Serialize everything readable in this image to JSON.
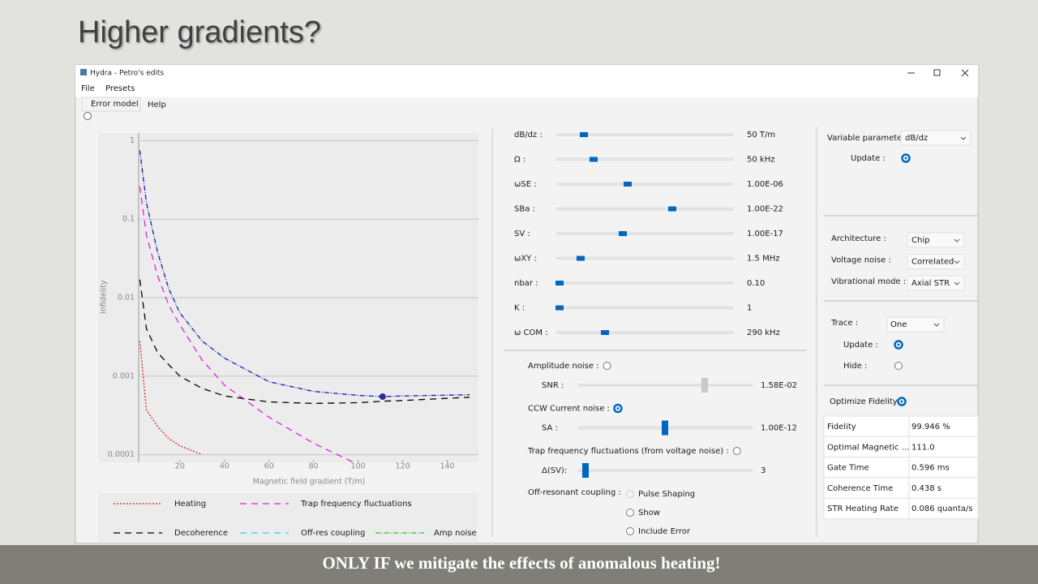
{
  "slide": {
    "title": "Higher gradients?",
    "footer": "ONLY IF we mitigate the effects of anomalous heating!"
  },
  "window": {
    "title": "Hydra - Petro's edits",
    "menu": [
      "File",
      "Presets"
    ],
    "tabs": [
      "Error model",
      "Help"
    ]
  },
  "chart_data": {
    "type": "line",
    "x_label": "Magnetic field gradient (T/m)",
    "y_label": "Infidelity",
    "log_y": true,
    "grid": true,
    "xlim": [
      1.5,
      154
    ],
    "ylim": [
      8e-05,
      1.25
    ],
    "xticks": [
      20,
      40,
      60,
      80,
      100,
      120,
      140
    ],
    "yticks": [
      1,
      0.1,
      0.01,
      0.001,
      0.0001
    ],
    "x": [
      2,
      5,
      10,
      15,
      20,
      30,
      40,
      60,
      80,
      100,
      111,
      120,
      150
    ],
    "series": [
      {
        "name": "Heating",
        "color": "#e02020",
        "style": "dotted",
        "values": [
          0.0028,
          0.00037,
          0.00023,
          0.00016,
          0.00013,
          0.0001,
          null,
          null,
          null,
          null,
          null,
          null,
          null
        ]
      },
      {
        "name": "Trap frequency fluctuations",
        "color": "#e020e0",
        "style": "dashed",
        "values": [
          0.26,
          0.062,
          0.019,
          0.008,
          0.0045,
          0.0016,
          0.00077,
          0.0003,
          0.00014,
          7.5e-05,
          null,
          null,
          null
        ]
      },
      {
        "name": "Decoherence",
        "color": "#000000",
        "style": "dashed",
        "values": [
          0.017,
          0.004,
          0.002,
          0.0014,
          0.001,
          0.0007,
          0.00056,
          0.00047,
          0.00045,
          0.00046,
          0.00048,
          0.00049,
          0.00054
        ]
      },
      {
        "name": "Off-res coupling",
        "color": "#20d8f0",
        "style": "dashed",
        "values": [
          null,
          null,
          null,
          null,
          null,
          null,
          null,
          null,
          null,
          null,
          null,
          null,
          null
        ]
      },
      {
        "name": "Amp noise",
        "color": "#30c020",
        "style": "dashdot",
        "values": [
          null,
          null,
          null,
          null,
          null,
          null,
          null,
          null,
          null,
          null,
          null,
          null,
          null
        ]
      },
      {
        "color": "#1a1ab0",
        "style": "dashdot",
        "values": [
          0.75,
          0.16,
          0.038,
          0.013,
          0.0064,
          0.0028,
          0.0017,
          0.00085,
          0.00064,
          0.00057,
          0.00055,
          0.00056,
          0.00058
        ]
      }
    ],
    "marker": {
      "x": 111,
      "y": 0.00055,
      "color": "#2b2b9e"
    }
  },
  "parameters": [
    {
      "label": "dB/dz :",
      "value": "50 T/m"
    },
    {
      "label": "Ω :",
      "value": "50 kHz"
    },
    {
      "label": "ωSE :",
      "value": "1.00E-06"
    },
    {
      "label": "SBa :",
      "value": "1.00E-22"
    },
    {
      "label": "SV :",
      "value": "1.00E-17"
    },
    {
      "label": "ωXY :",
      "value": "1.5 MHz"
    },
    {
      "label": "nbar :",
      "value": "0.10"
    },
    {
      "label": "K :",
      "value": "1"
    },
    {
      "label": "ω COM :",
      "value": "290 kHz"
    }
  ],
  "noise_options": [
    {
      "label": "Amplitude noise :",
      "checked": false,
      "param": "SNR :",
      "value": "1.58E-02"
    },
    {
      "label": "CCW Current noise :",
      "checked": true,
      "param": "SA :",
      "value": "1.00E-12"
    },
    {
      "label": "Trap frequency fluctuations (from voltage noise) :",
      "checked": false,
      "param": "Δ(SV):",
      "value": "3"
    }
  ],
  "off_resonant": {
    "label": "Off-resonant coupling :",
    "options": [
      {
        "label": "Pulse Shaping",
        "checked": false,
        "enabled": false
      },
      {
        "label": "Show",
        "checked": false,
        "enabled": true
      },
      {
        "label": "Include Error",
        "checked": false,
        "enabled": true
      }
    ]
  },
  "settings": {
    "variable": {
      "label": "Variable parameter:",
      "value": "dB/dz"
    },
    "update": {
      "label": "Update :",
      "checked": true
    },
    "dropdowns": [
      {
        "label": "Architecture :",
        "value": "Chip"
      },
      {
        "label": "Voltage noise :",
        "value": "Correlated"
      },
      {
        "label": "Vibrational mode :",
        "value": "Axial STR"
      }
    ],
    "trace": {
      "label": "Trace :",
      "value": "One"
    },
    "trace_options": [
      {
        "label": "Update :",
        "checked": true
      },
      {
        "label": "Hide :",
        "checked": false
      }
    ],
    "optimize": {
      "label": "Optimize Fidelity :",
      "checked": true
    }
  },
  "results": [
    [
      "Fidelity",
      "99.946 %"
    ],
    [
      "Optimal Magnetic ...",
      "111.0"
    ],
    [
      "Gate Time",
      "0.596 ms"
    ],
    [
      "Coherence Time",
      "0.438 s"
    ],
    [
      "STR Heating Rate",
      "0.086 quanta/s"
    ]
  ]
}
